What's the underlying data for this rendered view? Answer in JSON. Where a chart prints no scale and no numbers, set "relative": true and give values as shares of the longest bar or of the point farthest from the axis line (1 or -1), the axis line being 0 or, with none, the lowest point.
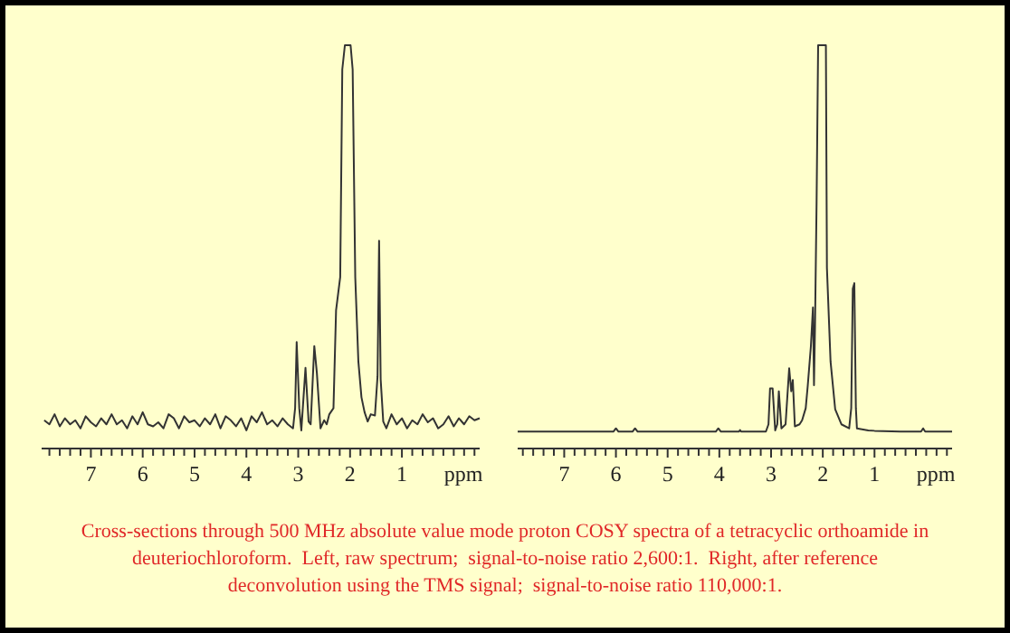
{
  "chart_data": [
    {
      "type": "line",
      "relative": true,
      "xlabel": "ppm",
      "xlim": [
        7.95,
        -0.5
      ],
      "xticks": [
        {
          "value": 7.8,
          "label": null
        },
        {
          "value": 7.6,
          "label": null
        },
        {
          "value": 7.4,
          "label": null
        },
        {
          "value": 7.2,
          "label": null
        },
        7,
        {
          "value": 6.8,
          "label": null
        },
        {
          "value": 6.6,
          "label": null
        },
        {
          "value": 6.4,
          "label": null
        },
        {
          "value": 6.2,
          "label": null
        },
        6,
        {
          "value": 5.8,
          "label": null
        },
        {
          "value": 5.6,
          "label": null
        },
        {
          "value": 5.4,
          "label": null
        },
        {
          "value": 5.2,
          "label": null
        },
        5,
        {
          "value": 4.8,
          "label": null
        },
        {
          "value": 4.6,
          "label": null
        },
        {
          "value": 4.4,
          "label": null
        },
        {
          "value": 4.2,
          "label": null
        },
        4,
        {
          "value": 3.8,
          "label": null
        },
        {
          "value": 3.6,
          "label": null
        },
        {
          "value": 3.4,
          "label": null
        },
        {
          "value": 3.2,
          "label": null
        },
        3,
        {
          "value": 2.8,
          "label": null
        },
        {
          "value": 2.6,
          "label": null
        },
        {
          "value": 2.4,
          "label": null
        },
        {
          "value": 2.2,
          "label": null
        },
        2,
        {
          "value": 1.8,
          "label": null
        },
        {
          "value": 1.6,
          "label": null
        },
        {
          "value": 1.4,
          "label": null
        },
        {
          "value": 1.2,
          "label": null
        },
        1,
        {
          "value": 0.8,
          "label": null
        },
        {
          "value": 0.6,
          "label": null
        },
        {
          "value": 0.4,
          "label": null
        },
        {
          "value": 0.2,
          "label": null
        },
        {
          "value": 0,
          "label": null
        },
        {
          "value": -0.2,
          "label": null
        },
        {
          "value": -0.4,
          "label": null
        }
      ],
      "annotations": [
        "Cross-sections through 500 MHz absolute value mode proton COSY spectra of a tetracyclic orthoamide in deuteriochloroform.  Left, raw spectrum;  signal-to-noise ratio 2,600:1.  Right, after reference deconvolution using the TMS signal;  signal-to-noise ratio 110,000:1."
      ],
      "series": [
        {
          "color": "#333333",
          "x": [
            7.9,
            7.8,
            7.7,
            7.6,
            7.5,
            7.4,
            7.3,
            7.2,
            7.1,
            7.0,
            6.9,
            6.8,
            6.7,
            6.6,
            6.5,
            6.4,
            6.3,
            6.2,
            6.1,
            6.0,
            5.9,
            5.8,
            5.7,
            5.6,
            5.5,
            5.4,
            5.3,
            5.2,
            5.1,
            5.0,
            4.9,
            4.8,
            4.7,
            4.6,
            4.5,
            4.4,
            4.3,
            4.2,
            4.1,
            4.0,
            3.9,
            3.8,
            3.7,
            3.6,
            3.5,
            3.4,
            3.3,
            3.2,
            3.1,
            3.06,
            3.03,
            2.98,
            2.94,
            2.86,
            2.8,
            2.76,
            2.69,
            2.64,
            2.57,
            2.5,
            2.45,
            2.4,
            2.32,
            2.27,
            2.19,
            2.15,
            2.1,
            1.99,
            1.95,
            1.9,
            1.84,
            1.78,
            1.72,
            1.66,
            1.6,
            1.52,
            1.47,
            1.44,
            1.41,
            1.36,
            1.3,
            1.2,
            1.1,
            1.0,
            0.9,
            0.8,
            0.7,
            0.6,
            0.5,
            0.4,
            0.3,
            0.2,
            0.1,
            0.0,
            -0.1,
            -0.2,
            -0.3,
            -0.4,
            -0.5
          ],
          "values": [
            0.07,
            0.06,
            0.085,
            0.055,
            0.075,
            0.06,
            0.07,
            0.05,
            0.08,
            0.065,
            0.055,
            0.075,
            0.06,
            0.085,
            0.06,
            0.07,
            0.05,
            0.08,
            0.06,
            0.09,
            0.06,
            0.055,
            0.065,
            0.05,
            0.085,
            0.075,
            0.05,
            0.08,
            0.065,
            0.07,
            0.055,
            0.075,
            0.06,
            0.085,
            0.05,
            0.08,
            0.07,
            0.055,
            0.075,
            0.045,
            0.08,
            0.065,
            0.09,
            0.06,
            0.07,
            0.055,
            0.075,
            0.06,
            0.05,
            0.1,
            0.264,
            0.1,
            0.045,
            0.2,
            0.067,
            0.06,
            0.254,
            0.187,
            0.05,
            0.07,
            0.06,
            0.085,
            0.1,
            0.343,
            0.425,
            0.94,
            1,
            1,
            0.94,
            0.425,
            0.216,
            0.127,
            0.09,
            0.067,
            0.085,
            0.082,
            0.179,
            0.515,
            0.172,
            0.067,
            0.05,
            0.085,
            0.06,
            0.075,
            0.05,
            0.07,
            0.06,
            0.085,
            0.065,
            0.075,
            0.05,
            0.06,
            0.08,
            0.055,
            0.075,
            0.06,
            0.08,
            0.07,
            0.075
          ]
        }
      ]
    },
    {
      "type": "line",
      "relative": true,
      "xlabel": "ppm",
      "xlim": [
        7.9,
        -0.5
      ],
      "xticks": [
        {
          "value": 7.8,
          "label": null
        },
        {
          "value": 7.6,
          "label": null
        },
        {
          "value": 7.4,
          "label": null
        },
        {
          "value": 7.2,
          "label": null
        },
        7,
        {
          "value": 6.8,
          "label": null
        },
        {
          "value": 6.6,
          "label": null
        },
        {
          "value": 6.4,
          "label": null
        },
        {
          "value": 6.2,
          "label": null
        },
        6,
        {
          "value": 5.8,
          "label": null
        },
        {
          "value": 5.6,
          "label": null
        },
        {
          "value": 5.4,
          "label": null
        },
        {
          "value": 5.2,
          "label": null
        },
        5,
        {
          "value": 4.8,
          "label": null
        },
        {
          "value": 4.6,
          "label": null
        },
        {
          "value": 4.4,
          "label": null
        },
        {
          "value": 4.2,
          "label": null
        },
        4,
        {
          "value": 3.8,
          "label": null
        },
        {
          "value": 3.6,
          "label": null
        },
        {
          "value": 3.4,
          "label": null
        },
        {
          "value": 3.2,
          "label": null
        },
        3,
        {
          "value": 2.8,
          "label": null
        },
        {
          "value": 2.6,
          "label": null
        },
        {
          "value": 2.4,
          "label": null
        },
        {
          "value": 2.2,
          "label": null
        },
        2,
        {
          "value": 1.8,
          "label": null
        },
        {
          "value": 1.6,
          "label": null
        },
        {
          "value": 1.4,
          "label": null
        },
        {
          "value": 1.2,
          "label": null
        },
        1,
        {
          "value": 0.8,
          "label": null
        },
        {
          "value": 0.6,
          "label": null
        },
        {
          "value": 0.4,
          "label": null
        },
        {
          "value": 0.2,
          "label": null
        },
        {
          "value": 0,
          "label": null
        },
        {
          "value": -0.2,
          "label": null
        },
        {
          "value": -0.4,
          "label": null
        }
      ],
      "series": [
        {
          "color": "#333333",
          "x": [
            7.9,
            6.05,
            6.0,
            5.95,
            5.68,
            5.63,
            5.58,
            4.07,
            4.02,
            3.97,
            3.62,
            3.6,
            3.58,
            3.1,
            3.05,
            3.02,
            2.97,
            2.92,
            2.88,
            2.85,
            2.8,
            2.72,
            2.65,
            2.61,
            2.58,
            2.54,
            2.45,
            2.4,
            2.33,
            2.29,
            2.23,
            2.19,
            2.17,
            2.15,
            2.12,
            2.09,
            1.94,
            1.92,
            1.85,
            1.76,
            1.64,
            1.49,
            1.45,
            1.42,
            1.39,
            1.36,
            1.34,
            1.12,
            1.0,
            0.5,
            0.1,
            0.06,
            0.02,
            -0.5
          ],
          "values": [
            0.042,
            0.042,
            0.05,
            0.042,
            0.042,
            0.05,
            0.042,
            0.042,
            0.05,
            0.042,
            0.042,
            0.046,
            0.042,
            0.042,
            0.06,
            0.149,
            0.149,
            0.045,
            0.06,
            0.142,
            0.05,
            0.06,
            0.199,
            0.142,
            0.17,
            0.055,
            0.06,
            0.07,
            0.1,
            0.157,
            0.254,
            0.35,
            0.157,
            0.306,
            0.61,
            1,
            1,
            0.448,
            0.216,
            0.097,
            0.06,
            0.05,
            0.1,
            0.396,
            0.41,
            0.1,
            0.05,
            0.045,
            0.044,
            0.042,
            0.042,
            0.05,
            0.042,
            0.042
          ]
        }
      ]
    }
  ]
}
